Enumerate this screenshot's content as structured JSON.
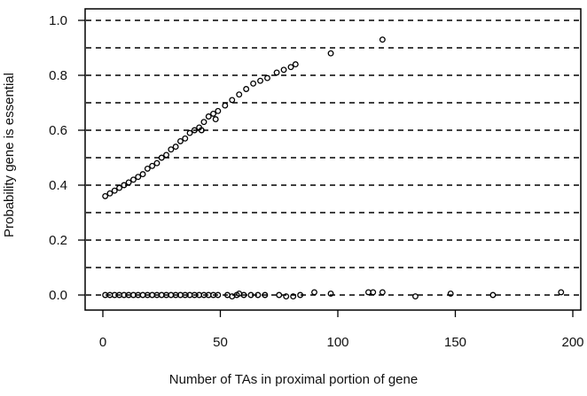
{
  "chart_data": {
    "type": "scatter",
    "title": "",
    "xlabel": "Number of TAs in proximal portion of gene",
    "ylabel": "Probability gene is essential",
    "xlim": [
      0,
      200
    ],
    "ylim": [
      0,
      1.0
    ],
    "x_ticks": [
      "0",
      "50",
      "100",
      "150",
      "200"
    ],
    "y_ticks": [
      "0.0",
      "0.2",
      "0.4",
      "0.6",
      "0.8",
      "1.0"
    ],
    "grid": "horizontal dashed lines every 0.1",
    "marker": "open circle",
    "series": [
      {
        "points": [
          [
            1,
            0.36
          ],
          [
            3,
            0.37
          ],
          [
            5,
            0.38
          ],
          [
            7,
            0.39
          ],
          [
            9,
            0.4
          ],
          [
            11,
            0.41
          ],
          [
            13,
            0.42
          ],
          [
            15,
            0.43
          ],
          [
            17,
            0.44
          ],
          [
            19,
            0.46
          ],
          [
            21,
            0.47
          ],
          [
            23,
            0.48
          ],
          [
            25,
            0.5
          ],
          [
            27,
            0.51
          ],
          [
            29,
            0.53
          ],
          [
            31,
            0.54
          ],
          [
            33,
            0.56
          ],
          [
            35,
            0.57
          ],
          [
            37,
            0.59
          ],
          [
            39,
            0.6
          ],
          [
            41,
            0.61
          ],
          [
            43,
            0.63
          ],
          [
            45,
            0.65
          ],
          [
            47,
            0.66
          ],
          [
            49,
            0.67
          ],
          [
            52,
            0.69
          ],
          [
            55,
            0.71
          ],
          [
            58,
            0.73
          ],
          [
            61,
            0.75
          ],
          [
            64,
            0.77
          ],
          [
            67,
            0.78
          ],
          [
            70,
            0.79
          ],
          [
            74,
            0.81
          ],
          [
            77,
            0.82
          ],
          [
            80,
            0.83
          ],
          [
            82,
            0.84
          ],
          [
            42,
            0.6
          ],
          [
            48,
            0.64
          ],
          [
            97,
            0.88
          ],
          [
            119,
            0.93
          ],
          [
            1,
            0.0
          ],
          [
            3,
            0.0
          ],
          [
            5,
            0.0
          ],
          [
            7,
            0.0
          ],
          [
            9,
            0.0
          ],
          [
            11,
            0.0
          ],
          [
            13,
            0.0
          ],
          [
            15,
            0.0
          ],
          [
            17,
            0.0
          ],
          [
            19,
            0.0
          ],
          [
            21,
            0.0
          ],
          [
            23,
            0.0
          ],
          [
            25,
            0.0
          ],
          [
            27,
            0.0
          ],
          [
            29,
            0.0
          ],
          [
            31,
            0.0
          ],
          [
            33,
            0.0
          ],
          [
            35,
            0.0
          ],
          [
            37,
            0.0
          ],
          [
            39,
            0.0
          ],
          [
            41,
            0.0
          ],
          [
            43,
            0.0
          ],
          [
            45,
            0.0
          ],
          [
            47,
            0.0
          ],
          [
            49,
            0.0
          ],
          [
            53,
            0.0
          ],
          [
            55,
            -0.005
          ],
          [
            57,
            0.0
          ],
          [
            58,
            0.005
          ],
          [
            60,
            0.0
          ],
          [
            63,
            0.0
          ],
          [
            66,
            0.0
          ],
          [
            69,
            0.0
          ],
          [
            75,
            0.0
          ],
          [
            78,
            -0.005
          ],
          [
            81,
            -0.005
          ],
          [
            84,
            0.0
          ],
          [
            90,
            0.01
          ],
          [
            97,
            0.005
          ],
          [
            113,
            0.01
          ],
          [
            115,
            0.01
          ],
          [
            119,
            0.01
          ],
          [
            133,
            -0.005
          ],
          [
            148,
            0.005
          ],
          [
            166,
            0.0
          ],
          [
            195,
            0.01
          ]
        ]
      }
    ]
  }
}
